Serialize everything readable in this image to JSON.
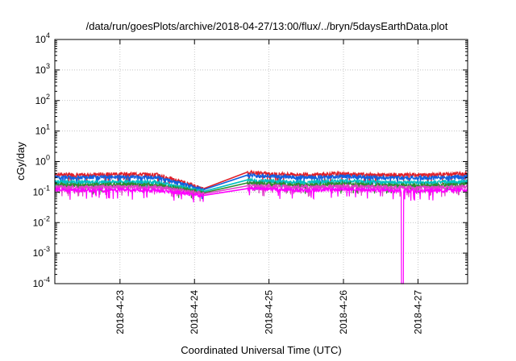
{
  "chart_data": {
    "type": "line",
    "title": "/data/run/goesPlots/archive/2018-04-27/13:00/flux/../bryn/5daysEarthData.plot",
    "xlabel": "Coordinated Universal Time (UTC)",
    "ylabel": "cGy/day",
    "yscale": "log",
    "ylim": [
      0.0001,
      10000
    ],
    "xlim": [
      "2018-04-22T03:00",
      "2018-04-27T16:00"
    ],
    "grid": true,
    "legend": "none",
    "yticks": [
      {
        "base": "10",
        "exp": "-4",
        "value": 0.0001
      },
      {
        "base": "10",
        "exp": "-3",
        "value": 0.001
      },
      {
        "base": "10",
        "exp": "-2",
        "value": 0.01
      },
      {
        "base": "10",
        "exp": "-1",
        "value": 0.1
      },
      {
        "base": "10",
        "exp": "0",
        "value": 1
      },
      {
        "base": "10",
        "exp": "1",
        "value": 10
      },
      {
        "base": "10",
        "exp": "2",
        "value": 100
      },
      {
        "base": "10",
        "exp": "3",
        "value": 1000
      },
      {
        "base": "10",
        "exp": "4",
        "value": 10000
      }
    ],
    "xticks": [
      {
        "label": "2018-4-23",
        "value": "2018-04-23T00:00"
      },
      {
        "label": "2018-4-24",
        "value": "2018-04-24T00:00"
      },
      {
        "label": "2018-4-25",
        "value": "2018-04-25T00:00"
      },
      {
        "label": "2018-4-26",
        "value": "2018-04-26T00:00"
      },
      {
        "label": "2018-4-27",
        "value": "2018-04-27T00:00"
      }
    ],
    "gap": [
      "2018-04-24T03:00",
      "2018-04-24T17:00"
    ],
    "dropout": {
      "series": "magenta",
      "x": "2018-04-26T19:00",
      "y": 0.0001
    },
    "series": [
      {
        "color": "#e0202a",
        "values": [
          {
            "x": "2018-04-22T03:00",
            "y": 0.38
          },
          {
            "x": "2018-04-22T12:00",
            "y": 0.36
          },
          {
            "x": "2018-04-23T00:00",
            "y": 0.4
          },
          {
            "x": "2018-04-23T12:00",
            "y": 0.37
          },
          {
            "x": "2018-04-24T03:00",
            "y": 0.13
          },
          {
            "x": "2018-04-24T17:00",
            "y": 0.45
          },
          {
            "x": "2018-04-25T00:00",
            "y": 0.4
          },
          {
            "x": "2018-04-25T12:00",
            "y": 0.37
          },
          {
            "x": "2018-04-26T00:00",
            "y": 0.4
          },
          {
            "x": "2018-04-26T12:00",
            "y": 0.37
          },
          {
            "x": "2018-04-27T00:00",
            "y": 0.36
          },
          {
            "x": "2018-04-27T16:00",
            "y": 0.4
          }
        ]
      },
      {
        "color": "#1060e0",
        "values": [
          {
            "x": "2018-04-22T03:00",
            "y": 0.31
          },
          {
            "x": "2018-04-22T12:00",
            "y": 0.3
          },
          {
            "x": "2018-04-23T00:00",
            "y": 0.32
          },
          {
            "x": "2018-04-23T12:00",
            "y": 0.3
          },
          {
            "x": "2018-04-24T03:00",
            "y": 0.12
          },
          {
            "x": "2018-04-24T17:00",
            "y": 0.36
          },
          {
            "x": "2018-04-25T00:00",
            "y": 0.33
          },
          {
            "x": "2018-04-25T12:00",
            "y": 0.3
          },
          {
            "x": "2018-04-26T00:00",
            "y": 0.33
          },
          {
            "x": "2018-04-26T12:00",
            "y": 0.3
          },
          {
            "x": "2018-04-27T00:00",
            "y": 0.29
          },
          {
            "x": "2018-04-27T16:00",
            "y": 0.32
          }
        ]
      },
      {
        "color": "#00c0c0",
        "values": [
          {
            "x": "2018-04-22T03:00",
            "y": 0.22
          },
          {
            "x": "2018-04-22T12:00",
            "y": 0.21
          },
          {
            "x": "2018-04-23T00:00",
            "y": 0.22
          },
          {
            "x": "2018-04-23T12:00",
            "y": 0.21
          },
          {
            "x": "2018-04-24T03:00",
            "y": 0.105
          },
          {
            "x": "2018-04-24T17:00",
            "y": 0.25
          },
          {
            "x": "2018-04-25T00:00",
            "y": 0.23
          },
          {
            "x": "2018-04-25T12:00",
            "y": 0.21
          },
          {
            "x": "2018-04-26T00:00",
            "y": 0.23
          },
          {
            "x": "2018-04-26T12:00",
            "y": 0.21
          },
          {
            "x": "2018-04-27T00:00",
            "y": 0.2
          },
          {
            "x": "2018-04-27T16:00",
            "y": 0.22
          }
        ]
      },
      {
        "color": "#2e8b2e",
        "values": [
          {
            "x": "2018-04-22T03:00",
            "y": 0.18
          },
          {
            "x": "2018-04-22T12:00",
            "y": 0.17
          },
          {
            "x": "2018-04-23T00:00",
            "y": 0.18
          },
          {
            "x": "2018-04-23T12:00",
            "y": 0.17
          },
          {
            "x": "2018-04-24T03:00",
            "y": 0.095
          },
          {
            "x": "2018-04-24T17:00",
            "y": 0.2
          },
          {
            "x": "2018-04-25T00:00",
            "y": 0.19
          },
          {
            "x": "2018-04-25T12:00",
            "y": 0.17
          },
          {
            "x": "2018-04-26T00:00",
            "y": 0.19
          },
          {
            "x": "2018-04-26T12:00",
            "y": 0.17
          },
          {
            "x": "2018-04-27T00:00",
            "y": 0.165
          },
          {
            "x": "2018-04-27T16:00",
            "y": 0.18
          }
        ]
      },
      {
        "color": "#e040c8",
        "values": [
          {
            "x": "2018-04-22T03:00",
            "y": 0.15
          },
          {
            "x": "2018-04-22T12:00",
            "y": 0.145
          },
          {
            "x": "2018-04-23T00:00",
            "y": 0.15
          },
          {
            "x": "2018-04-23T12:00",
            "y": 0.145
          },
          {
            "x": "2018-04-24T03:00",
            "y": 0.088
          },
          {
            "x": "2018-04-24T17:00",
            "y": 0.16
          },
          {
            "x": "2018-04-25T00:00",
            "y": 0.155
          },
          {
            "x": "2018-04-25T12:00",
            "y": 0.145
          },
          {
            "x": "2018-04-26T00:00",
            "y": 0.155
          },
          {
            "x": "2018-04-26T12:00",
            "y": 0.145
          },
          {
            "x": "2018-04-27T00:00",
            "y": 0.14
          },
          {
            "x": "2018-04-27T16:00",
            "y": 0.15
          }
        ]
      },
      {
        "color": "#ff00ff",
        "values": [
          {
            "x": "2018-04-22T03:00",
            "y": 0.12
          },
          {
            "x": "2018-04-22T12:00",
            "y": 0.115
          },
          {
            "x": "2018-04-23T00:00",
            "y": 0.12
          },
          {
            "x": "2018-04-23T12:00",
            "y": 0.115
          },
          {
            "x": "2018-04-24T03:00",
            "y": 0.078
          },
          {
            "x": "2018-04-24T17:00",
            "y": 0.13
          },
          {
            "x": "2018-04-25T00:00",
            "y": 0.125
          },
          {
            "x": "2018-04-25T12:00",
            "y": 0.115
          },
          {
            "x": "2018-04-26T00:00",
            "y": 0.125
          },
          {
            "x": "2018-04-26T12:00",
            "y": 0.115
          },
          {
            "x": "2018-04-27T00:00",
            "y": 0.11
          },
          {
            "x": "2018-04-27T16:00",
            "y": 0.12
          }
        ]
      }
    ]
  }
}
